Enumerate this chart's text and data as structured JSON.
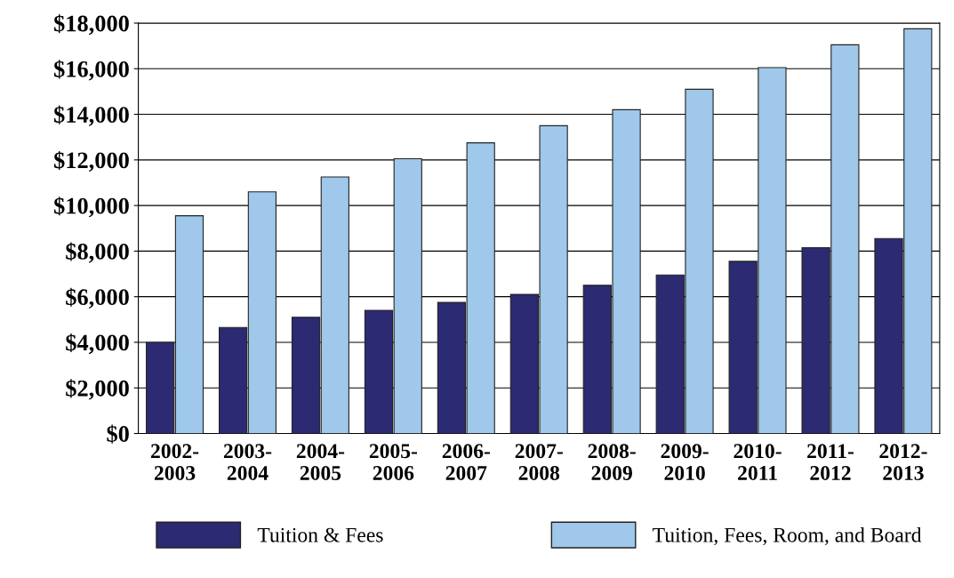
{
  "chart_data": {
    "type": "bar",
    "categories": [
      "2002-\n2003",
      "2003-\n2004",
      "2004-\n2005",
      "2005-\n2006",
      "2006-\n2007",
      "2007-\n2008",
      "2008-\n2009",
      "2009-\n2010",
      "2010-\n2011",
      "2011-\n2012",
      "2012-\n2013"
    ],
    "series": [
      {
        "name": "Tuition & Fees",
        "color": "#2b2a72",
        "values": [
          4000,
          4650,
          5100,
          5400,
          5750,
          6100,
          6500,
          6950,
          7550,
          8150,
          8550
        ]
      },
      {
        "name": "Tuition, Fees, Room, and Board",
        "color": "#9fc8ea",
        "values": [
          9550,
          10600,
          11250,
          12050,
          12750,
          13500,
          14200,
          15100,
          16050,
          17050,
          17750
        ]
      }
    ],
    "ylim": [
      0,
      18000
    ],
    "yticks": [
      {
        "value": 0,
        "label": "$0"
      },
      {
        "value": 2000,
        "label": "$2,000"
      },
      {
        "value": 4000,
        "label": "$4,000"
      },
      {
        "value": 6000,
        "label": "$6,000"
      },
      {
        "value": 8000,
        "label": "$8,000"
      },
      {
        "value": 10000,
        "label": "$10,000"
      },
      {
        "value": 12000,
        "label": "$12,000"
      },
      {
        "value": 14000,
        "label": "$14,000"
      },
      {
        "value": 16000,
        "label": "$16,000"
      },
      {
        "value": 18000,
        "label": "$18,000"
      }
    ],
    "grid": "y",
    "legend": "bottom"
  }
}
